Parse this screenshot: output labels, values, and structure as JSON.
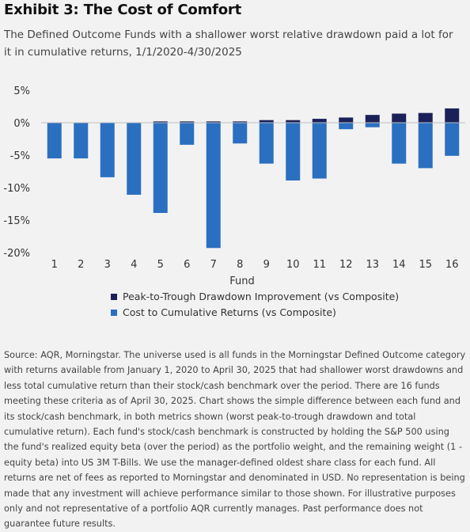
{
  "title": "Exhibit 3: The Cost of Comfort",
  "subtitle": "The Defined Outcome Funds with a shallower worst relative drawdown paid a lot for it in cumulative returns, 1/1/2020-4/30/2025",
  "source": "Source: AQR, Morningstar. The universe used is all funds in the Morningstar Defined Outcome category with returns available from January 1, 2020 to April 30, 2025 that had shallower worst drawdowns and less total cumulative return than their stock/cash benchmark over the period. There are 16 funds meeting these criteria as of April 30, 2025. Chart shows the simple difference between each fund and its stock/cash benchmark, in both metrics shown (worst peak-to-trough drawdown and total cumulative return). Each fund's stock/cash benchmark is constructed by holding the S&P 500 using the fund's realized equity beta (over the period) as the portfolio weight, and the remaining weight (1 - equity beta) into US 3M T-Bills. We use the manager-defined oldest share class for each fund. All returns are net of fees as reported to Morningstar and denominated in USD. No representation is being made that any investment will achieve performance similar to those shown. For illustrative purposes only and not representative of a portfolio AQR currently manages. Past performance does not guarantee future results.",
  "chart_data": {
    "type": "bar",
    "xlabel": "Fund",
    "ylabel": "",
    "categories": [
      "1",
      "2",
      "3",
      "4",
      "5",
      "6",
      "7",
      "8",
      "9",
      "10",
      "11",
      "12",
      "13",
      "14",
      "15",
      "16"
    ],
    "ylim": [
      -20,
      5
    ],
    "yticks": [
      5,
      0,
      -5,
      -10,
      -15,
      -20
    ],
    "ytick_labels": [
      "5%",
      "0%",
      "-5%",
      "-10%",
      "-15%",
      "-20%"
    ],
    "grid": false,
    "legend_position": "bottom-center",
    "series": [
      {
        "name": "Peak-to-Trough Drawdown Improvement (vs Composite)",
        "color": "#1b2158",
        "values": [
          0.0,
          0.0,
          0.0,
          0.0,
          0.2,
          0.2,
          0.2,
          0.2,
          0.4,
          0.4,
          0.6,
          0.8,
          1.2,
          1.4,
          1.5,
          2.2
        ]
      },
      {
        "name": "Cost to Cumulative Returns (vs Composite)",
        "color": "#2b6fc0",
        "values": [
          -5.5,
          -5.5,
          -8.4,
          -11.1,
          -13.9,
          -3.4,
          -19.3,
          -3.2,
          -6.3,
          -8.9,
          -8.6,
          -1.0,
          -0.7,
          -6.3,
          -7.0,
          -5.1
        ]
      }
    ]
  }
}
